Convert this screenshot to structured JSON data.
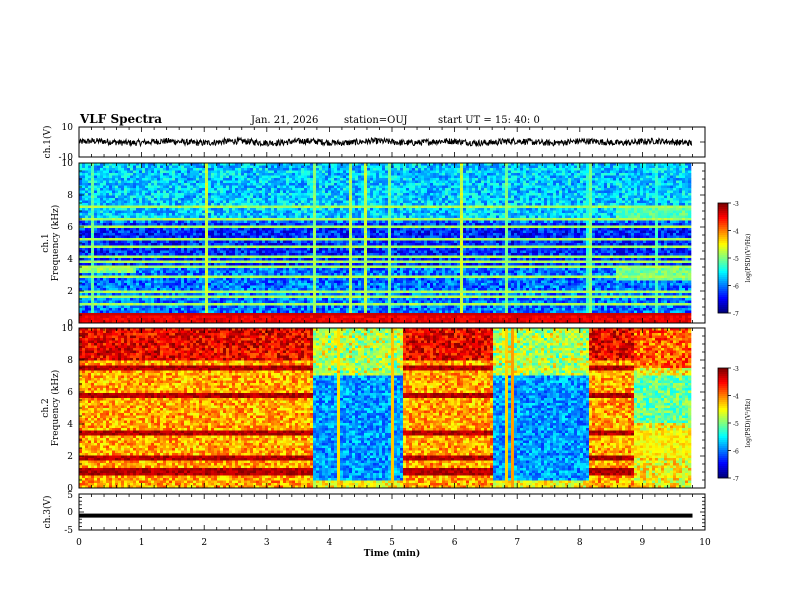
{
  "header": {
    "title": "VLF Spectra",
    "date": "Jan. 21, 2026",
    "station": "station=OUJ",
    "start": "start UT =  15: 40: 0"
  },
  "chart_data": [
    {
      "type": "line",
      "panel": "ch1-waveform",
      "ylabel": "ch.1(V)",
      "ylim": [
        -10,
        10
      ],
      "yticks": [
        "10",
        "-10"
      ],
      "baseline": 0,
      "trace_color": "#000000"
    },
    {
      "type": "heatmap",
      "panel": "ch1-spectrogram",
      "ylabel_line1": "ch.1",
      "ylabel_line2": "Frequency (kHz)",
      "ylim": [
        0,
        10
      ],
      "yticks": [
        "0",
        "2",
        "4",
        "6",
        "8",
        "10"
      ],
      "xlim": [
        0,
        9.8
      ],
      "colorbar": {
        "label": "log(PSD)(V²/Hz)",
        "range": [
          -7,
          -3
        ],
        "ticks": [
          "-3",
          "-4",
          "-5",
          "-6",
          "-7"
        ]
      },
      "background_level": -6.0,
      "emission_bands_khz": [
        0.4,
        0.55,
        1.2,
        1.6,
        2.0,
        2.5,
        2.9,
        3.5,
        3.8,
        4.2,
        4.8,
        5.3,
        6.0,
        6.5,
        7.2
      ],
      "patches": [
        {
          "t": [
            0,
            0.9
          ],
          "f": [
            3.2,
            3.6
          ],
          "level": -5.2
        },
        {
          "t": [
            8.6,
            9.8
          ],
          "f": [
            2.6,
            3.6
          ],
          "level": -5.3
        },
        {
          "t": [
            8.6,
            9.8
          ],
          "f": [
            6.6,
            7.2
          ],
          "level": -5.4
        }
      ]
    },
    {
      "type": "heatmap",
      "panel": "ch2-spectrogram",
      "ylabel_line1": "ch.2",
      "ylabel_line2": "Frequency (kHz)",
      "ylim": [
        0,
        10
      ],
      "yticks": [
        "0",
        "2",
        "4",
        "6",
        "8",
        "10"
      ],
      "xlim": [
        0,
        9.8
      ],
      "colorbar": {
        "label": "log(PSD)(V²/Hz)",
        "range": [
          -7,
          -3
        ],
        "ticks": [
          "-3",
          "-4",
          "-5",
          "-6",
          "-7"
        ]
      },
      "segments": [
        {
          "t": [
            0,
            3.75
          ],
          "state": "active"
        },
        {
          "t": [
            3.75,
            5.2
          ],
          "state": "quiet"
        },
        {
          "t": [
            5.2,
            6.65
          ],
          "state": "active"
        },
        {
          "t": [
            6.65,
            8.15
          ],
          "state": "quiet"
        },
        {
          "t": [
            8.15,
            8.9
          ],
          "state": "active"
        },
        {
          "t": [
            8.9,
            9.8
          ],
          "state": "mixed"
        }
      ],
      "strong_bands_khz": [
        1.0,
        1.9,
        3.4,
        5.8,
        7.5
      ]
    },
    {
      "type": "line",
      "panel": "ch3-waveform",
      "ylabel": "ch.3(V)",
      "ylim": [
        -5,
        5
      ],
      "yticks": [
        "5",
        "0",
        "-5"
      ],
      "value": -1.0,
      "trace_color": "#000000"
    }
  ],
  "xaxis": {
    "label": "Time (min)",
    "range": [
      0,
      10
    ],
    "ticks": [
      "0",
      "1",
      "2",
      "3",
      "4",
      "5",
      "6",
      "7",
      "8",
      "9",
      "10"
    ]
  }
}
